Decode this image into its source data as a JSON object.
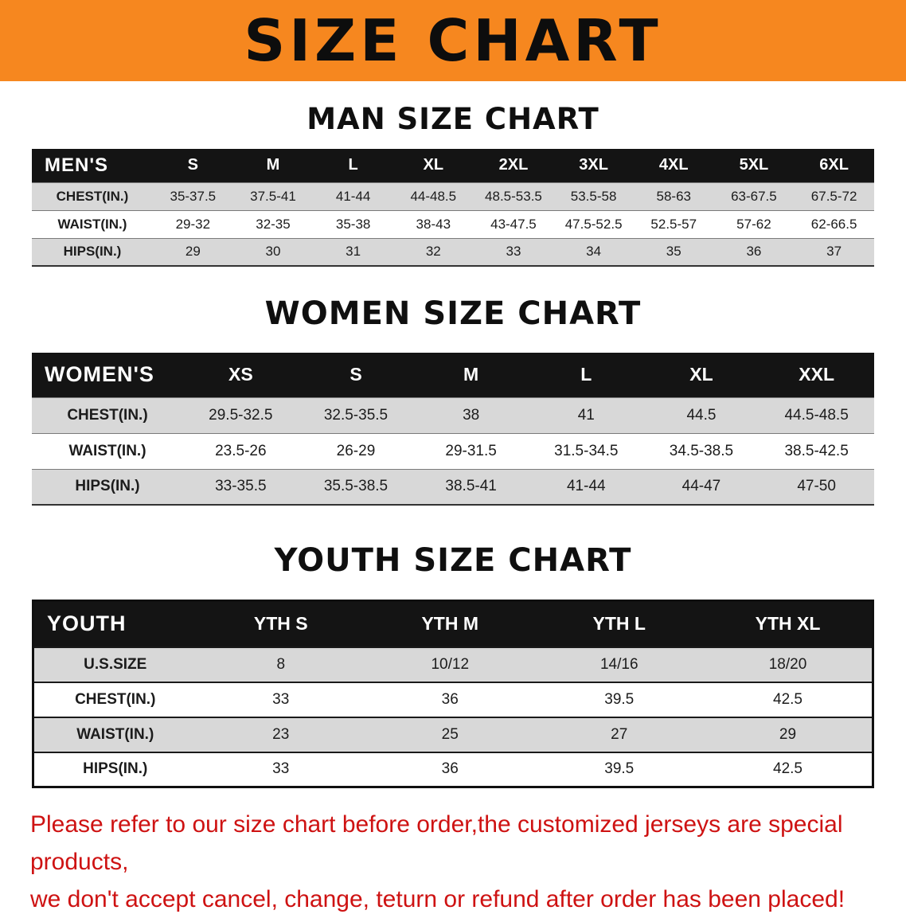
{
  "colors": {
    "banner_bg": "#f6871f",
    "banner_text": "#0d0d0d",
    "header_bar_bg": "#141414",
    "header_bar_text": "#ffffff",
    "row_stripe": "#d8d8d8",
    "disclaimer_red": "#ce1212"
  },
  "banner": {
    "title": "SIZE CHART"
  },
  "men": {
    "heading": "MAN SIZE CHART",
    "header": [
      "MEN'S",
      "S",
      "M",
      "L",
      "XL",
      "2XL",
      "3XL",
      "4XL",
      "5XL",
      "6XL"
    ],
    "rows": [
      {
        "label": "CHEST(IN.)",
        "values": [
          "35-37.5",
          "37.5-41",
          "41-44",
          "44-48.5",
          "48.5-53.5",
          "53.5-58",
          "58-63",
          "63-67.5",
          "67.5-72"
        ]
      },
      {
        "label": "WAIST(IN.)",
        "values": [
          "29-32",
          "32-35",
          "35-38",
          "38-43",
          "43-47.5",
          "47.5-52.5",
          "52.5-57",
          "57-62",
          "62-66.5"
        ]
      },
      {
        "label": "HIPS(IN.)",
        "values": [
          "29",
          "30",
          "31",
          "32",
          "33",
          "34",
          "35",
          "36",
          "37"
        ]
      }
    ]
  },
  "women": {
    "heading": "WOMEN SIZE CHART",
    "header": [
      "WOMEN'S",
      "XS",
      "S",
      "M",
      "L",
      "XL",
      "XXL"
    ],
    "rows": [
      {
        "label": "CHEST(IN.)",
        "values": [
          "29.5-32.5",
          "32.5-35.5",
          "38",
          "41",
          "44.5",
          "44.5-48.5"
        ]
      },
      {
        "label": "WAIST(IN.)",
        "values": [
          "23.5-26",
          "26-29",
          "29-31.5",
          "31.5-34.5",
          "34.5-38.5",
          "38.5-42.5"
        ]
      },
      {
        "label": "HIPS(IN.)",
        "values": [
          "33-35.5",
          "35.5-38.5",
          "38.5-41",
          "41-44",
          "44-47",
          "47-50"
        ]
      }
    ]
  },
  "youth": {
    "heading": "YOUTH SIZE CHART",
    "header": [
      "YOUTH",
      "YTH S",
      "YTH M",
      "YTH L",
      "YTH XL"
    ],
    "rows": [
      {
        "label": "U.S.SIZE",
        "values": [
          "8",
          "10/12",
          "14/16",
          "18/20"
        ]
      },
      {
        "label": "CHEST(IN.)",
        "values": [
          "33",
          "36",
          "39.5",
          "42.5"
        ]
      },
      {
        "label": "WAIST(IN.)",
        "values": [
          "23",
          "25",
          "27",
          "29"
        ]
      },
      {
        "label": "HIPS(IN.)",
        "values": [
          "33",
          "36",
          "39.5",
          "42.5"
        ]
      }
    ]
  },
  "disclaimer": {
    "line1": "Please refer to our size chart before order,the customized jerseys are special products,",
    "line2": "we don't accept cancel, change, teturn or refund after order has been placed!"
  }
}
